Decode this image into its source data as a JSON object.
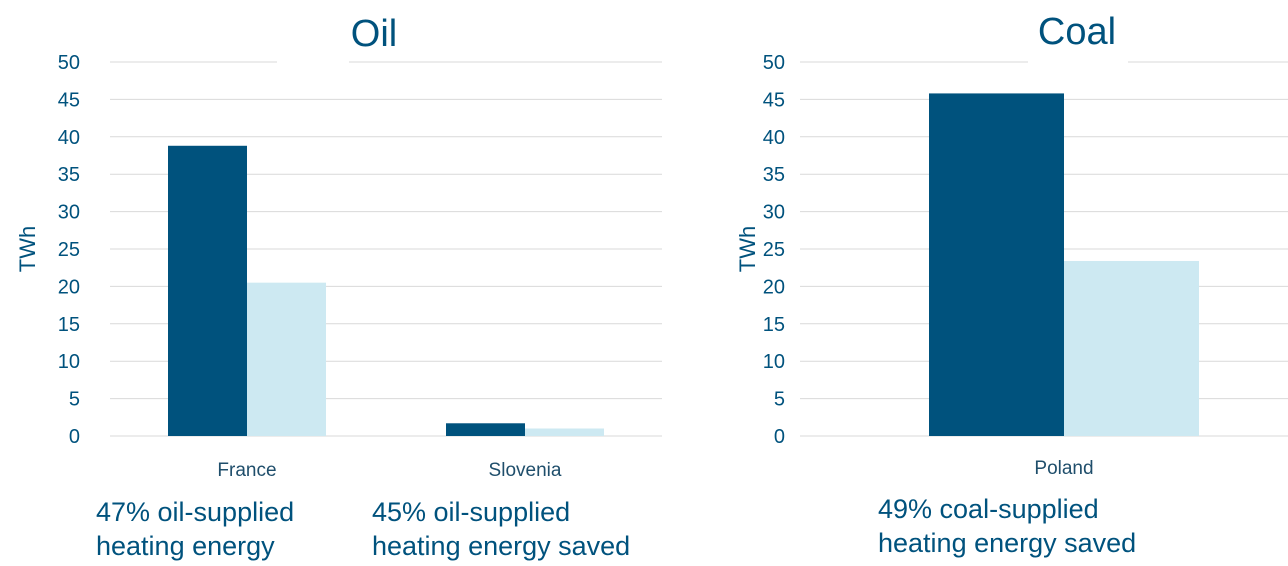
{
  "colors": {
    "text": "#00527d",
    "category_text": "#1f4e6b",
    "grid": "#d9d9d9",
    "series_dark": "#00527d",
    "series_light": "#cde9f2"
  },
  "chart_data": [
    {
      "type": "bar",
      "title": "Oil",
      "ylabel": "TWh",
      "xlabel": "",
      "ylim": [
        0,
        50
      ],
      "yticks": [
        0,
        5,
        10,
        15,
        20,
        25,
        30,
        35,
        40,
        45,
        50
      ],
      "grid": true,
      "categories": [
        "France",
        "Slovenia"
      ],
      "series": [
        {
          "values": [
            38.8,
            1.7
          ]
        },
        {
          "values": [
            20.5,
            1.0
          ]
        }
      ],
      "annotations": [
        {
          "line1": "47% oil-supplied",
          "line2": "heating energy"
        },
        {
          "line1": "45% oil-supplied",
          "line2": "heating energy saved"
        }
      ]
    },
    {
      "type": "bar",
      "title": "Coal",
      "ylabel": "TWh",
      "xlabel": "",
      "ylim": [
        0,
        50
      ],
      "yticks": [
        0,
        5,
        10,
        15,
        20,
        25,
        30,
        35,
        40,
        45,
        50
      ],
      "grid": true,
      "categories": [
        "Poland"
      ],
      "series": [
        {
          "values": [
            45.8
          ]
        },
        {
          "values": [
            23.4
          ]
        }
      ],
      "annotations": [
        {
          "line1": "49% coal-supplied",
          "line2": "heating energy saved"
        }
      ]
    }
  ]
}
